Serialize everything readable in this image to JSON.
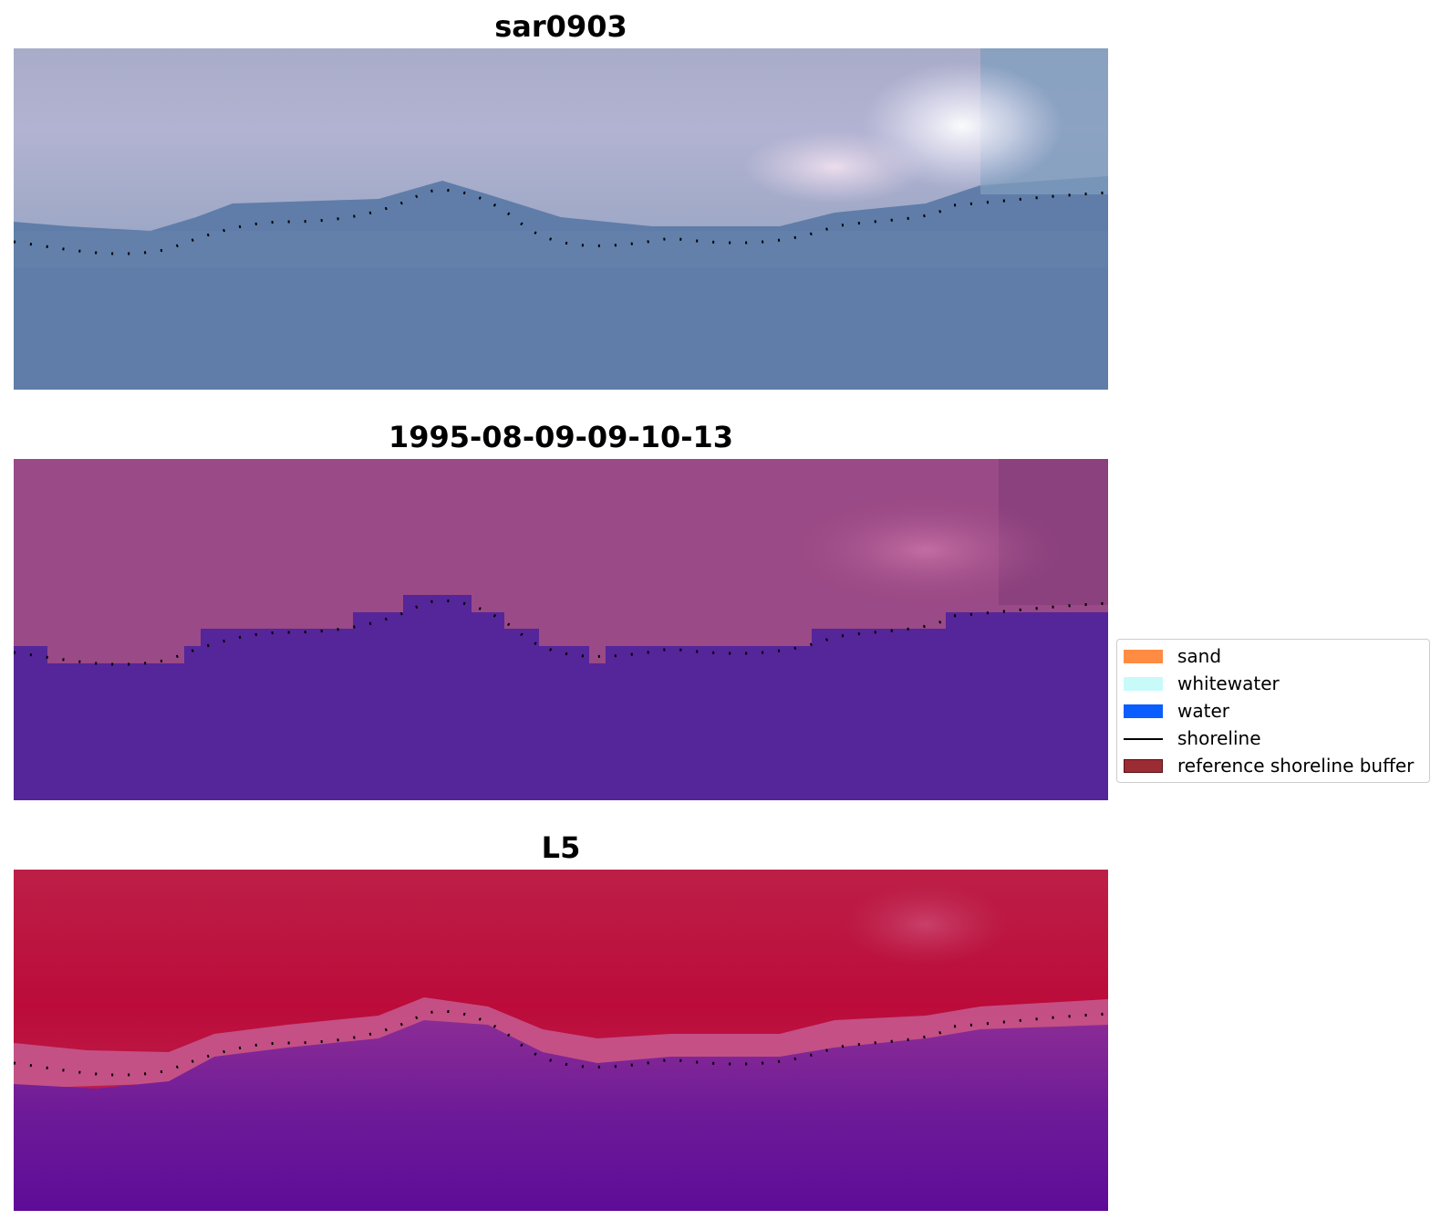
{
  "panels": [
    {
      "title": "sar0903"
    },
    {
      "title": "1995-08-09-09-10-13"
    },
    {
      "title": "L5"
    }
  ],
  "legend": {
    "items": [
      {
        "label": "sand",
        "type": "patch",
        "color": "#ff8c42"
      },
      {
        "label": "whitewater",
        "type": "patch",
        "color": "#c8fafa"
      },
      {
        "label": "water",
        "type": "patch",
        "color": "#0a5dff"
      },
      {
        "label": "shoreline",
        "type": "line",
        "color": "#000000"
      },
      {
        "label": "reference shoreline buffer",
        "type": "patch",
        "color": "#9b2c33"
      }
    ]
  },
  "colors": {
    "shoreline": "#000000",
    "classified_water": "#55259a",
    "classified_land": "#9a4a86"
  }
}
